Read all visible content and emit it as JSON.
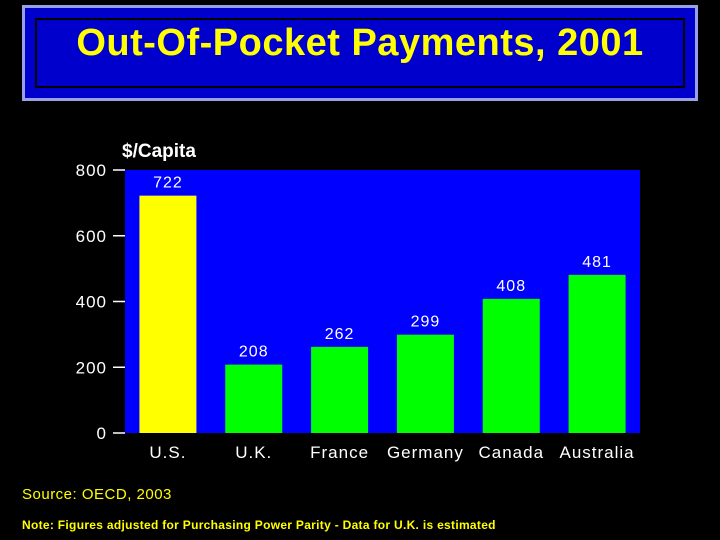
{
  "title": "Out-Of-Pocket Payments, 2001",
  "source": "Source: OECD, 2003",
  "note": "Note: Figures adjusted for Purchasing Power Parity - Data for U.K. is estimated",
  "colors": {
    "background": "#000000",
    "title_panel": "#0000CC",
    "title_text": "#FFFF00",
    "plot_background": "#0000FF",
    "text": "#FFFFFF",
    "highlight_bar": "#FFFF00",
    "bar": "#00FF00"
  },
  "chart_data": {
    "type": "bar",
    "title": "",
    "ylabel": "$/Capita",
    "xlabel": "",
    "categories": [
      "U.S.",
      "U.K.",
      "France",
      "Germany",
      "Canada",
      "Australia"
    ],
    "values": [
      722,
      208,
      262,
      299,
      408,
      481
    ],
    "data_labels": [
      "722",
      "208",
      "262",
      "299",
      "408",
      "481"
    ],
    "bar_colors": [
      "#FFFF00",
      "#00FF00",
      "#00FF00",
      "#00FF00",
      "#00FF00",
      "#00FF00"
    ],
    "ylim": [
      0,
      800
    ],
    "yticks": [
      0,
      200,
      400,
      600,
      800
    ],
    "grid": false,
    "legend": "none"
  }
}
